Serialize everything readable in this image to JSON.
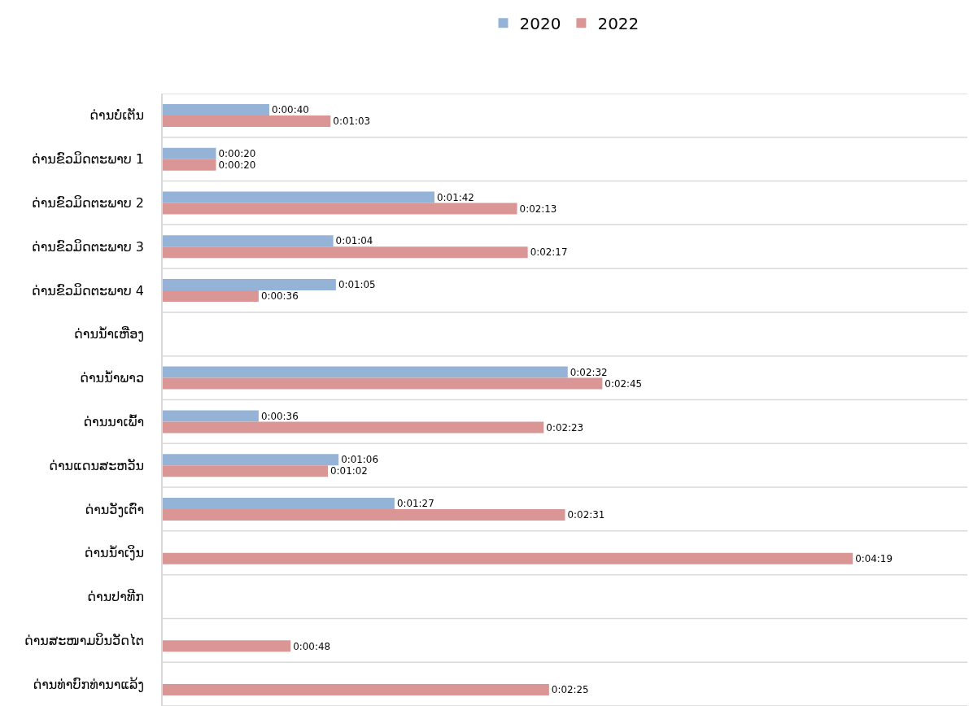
{
  "chart_data": {
    "type": "bar",
    "orientation": "horizontal",
    "categories": [
      "ດ່ານບໍ່ເຕັນ",
      "ດ່ານຂົວມິດຕະພາບ 1",
      "ດ່ານຂົວມິດຕະພາບ 2",
      "ດ່ານຂົວມິດຕະພາບ 3",
      "ດ່ານຂົວມິດຕະພາບ 4",
      "ດ່ານນ້ຳເຫືອງ",
      "ດ່ານນ້ຳພາວ",
      "ດ່ານນາເພົ້າ",
      "ດ່ານແດນສະຫວັນ",
      "ດ່ານວັງເຕົ່າ",
      "ດ່ານນ້ຳເງິນ",
      "ດ່ານປາທີກ",
      "ດ່ານສະໜາມບິນວັດໄຕ",
      "ດ່ານທ່າບົກທ່ານາແລ້ງ"
    ],
    "series": [
      {
        "name": "2020",
        "color": "#95b3d7",
        "values": [
          40,
          20,
          102,
          64,
          65,
          null,
          152,
          36,
          66,
          87,
          null,
          null,
          null,
          null
        ],
        "value_labels": [
          "0:00:40",
          "0:00:20",
          "0:01:42",
          "0:01:04",
          "0:01:05",
          null,
          "0:02:32",
          "0:00:36",
          "0:01:06",
          "0:01:27",
          null,
          null,
          null,
          null
        ]
      },
      {
        "name": "2022",
        "color": "#d99694",
        "values": [
          63,
          20,
          133,
          137,
          36,
          null,
          165,
          143,
          62,
          151,
          259,
          null,
          48,
          145
        ],
        "value_labels": [
          "0:01:03",
          "0:00:20",
          "0:02:13",
          "0:02:17",
          "0:00:36",
          null,
          "0:02:45",
          "0:02:23",
          "0:01:02",
          "0:02:31",
          "0:04:19",
          null,
          "0:00:48",
          "0:02:25"
        ]
      }
    ],
    "xlim": [
      0,
      302
    ],
    "tick_labels": "y",
    "grid": "y",
    "legend": "top"
  }
}
